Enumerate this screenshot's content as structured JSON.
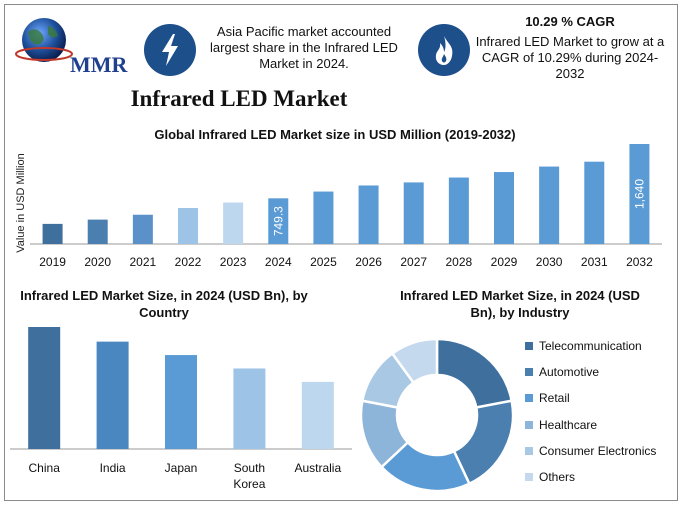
{
  "header": {
    "logo_text": "MMR",
    "info_left": "Asia Pacific market accounted largest share in the Infrared LED Market in 2024.",
    "info_right_title": "10.29 % CAGR",
    "info_right_text": "Infrared LED Market to grow at a CAGR of 10.29% during 2024-2032",
    "icon_left": "lightning-bolt-icon",
    "icon_right": "flame-icon"
  },
  "title": "Infrared LED Market",
  "colors": {
    "dark_blue": "#3e6f9d",
    "mid_blue": "#5b9bd5",
    "light_blue": "#9dc3e6",
    "pale_blue": "#bdd7ee",
    "icon_bg": "#1d4f8a"
  },
  "chart_data": [
    {
      "type": "bar",
      "title": "Global Infrared LED Market size in USD Million (2019-2032)",
      "ylabel": "Value in USD Million",
      "categories": [
        "2019",
        "2020",
        "2021",
        "2022",
        "2023",
        "2024",
        "2025",
        "2026",
        "2027",
        "2028",
        "2029",
        "2030",
        "2031",
        "2032"
      ],
      "values": [
        330,
        400,
        480,
        590,
        680,
        749.3,
        860,
        960,
        1010,
        1090,
        1180,
        1270,
        1350,
        1640
      ],
      "data_labels": {
        "2024": "749.3",
        "2032": "1,640"
      },
      "bar_colors": [
        "#3e6f9d",
        "#4a7fb0",
        "#5b91c8",
        "#9dc3e6",
        "#bdd7ee",
        "#5b9bd5",
        "#5b9bd5",
        "#5b9bd5",
        "#5b9bd5",
        "#5b9bd5",
        "#5b9bd5",
        "#5b9bd5",
        "#5b9bd5",
        "#5b9bd5"
      ],
      "ylim": [
        0,
        1640
      ]
    },
    {
      "type": "bar",
      "title": "Infrared LED Market Size, in 2024 (USD Bn), by Country",
      "categories": [
        "China",
        "India",
        "Japan",
        "South Korea",
        "Australia"
      ],
      "values": [
        100,
        88,
        77,
        66,
        55
      ],
      "bar_colors": [
        "#3e6f9d",
        "#4a86c0",
        "#5b9bd5",
        "#9dc3e6",
        "#bdd7ee"
      ],
      "ylim": [
        0,
        100
      ]
    },
    {
      "type": "pie",
      "title": "Infrared LED Market Size, in 2024 (USD Bn), by Industry",
      "labels": [
        "Telecommunication",
        "Automotive",
        "Retail",
        "Healthcare",
        "Consumer Electronics",
        "Others"
      ],
      "values": [
        22,
        21,
        20,
        15,
        12,
        10
      ],
      "colors": [
        "#3e6f9d",
        "#4a7fb0",
        "#5b9bd5",
        "#8db4d9",
        "#a9c8e4",
        "#c5d9ee"
      ],
      "donut": true
    }
  ]
}
